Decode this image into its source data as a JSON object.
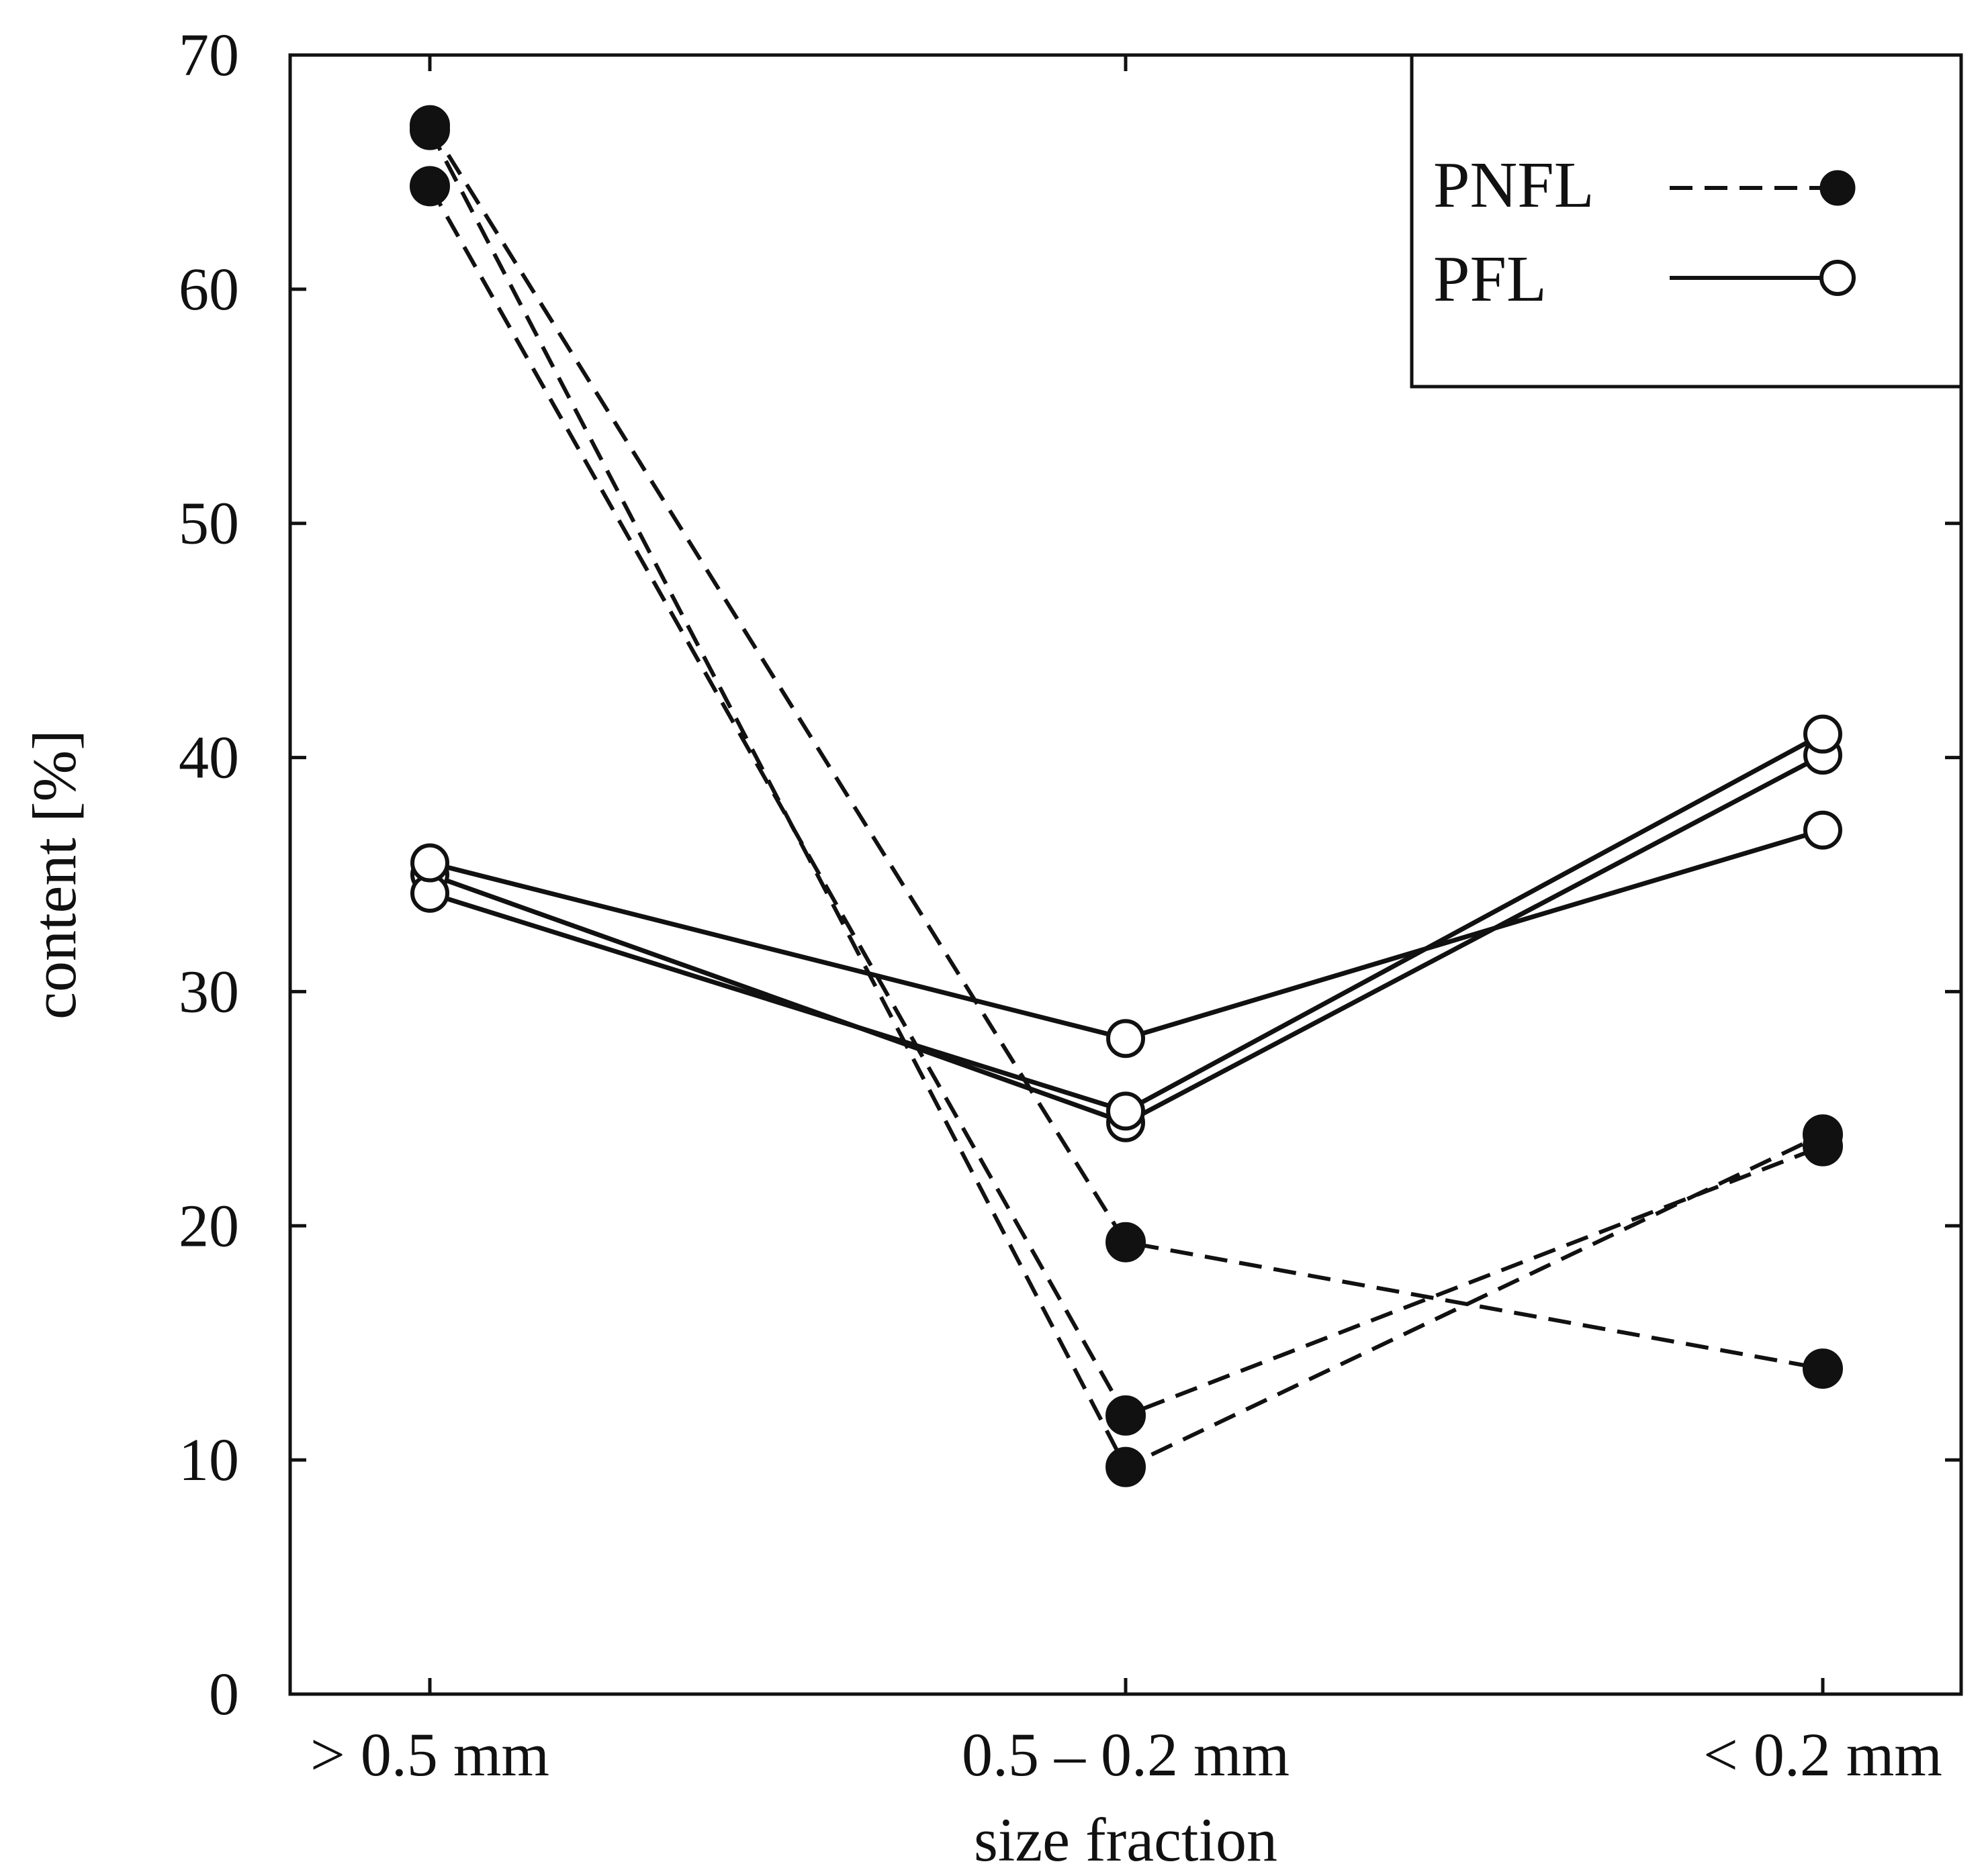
{
  "chart_data": {
    "type": "line",
    "title": "",
    "xlabel": "size fraction",
    "ylabel": "content [%]",
    "categories": [
      "> 0.5 mm",
      "0.5 – 0.2 mm",
      "< 0.2 mm"
    ],
    "ylim": [
      0,
      70
    ],
    "yticks": [
      "0",
      "10",
      "20",
      "30",
      "40",
      "50",
      "60",
      "70"
    ],
    "grid": false,
    "legend": {
      "position": "top-right",
      "entries": [
        {
          "label": "PNFL",
          "style": "dashed",
          "marker": "filled-circle"
        },
        {
          "label": "PFL",
          "style": "solid",
          "marker": "open-circle"
        }
      ]
    },
    "series": [
      {
        "name": "PNFL",
        "group": "PNFL",
        "values": [
          66.8,
          9.7,
          23.9
        ]
      },
      {
        "name": "PNFL",
        "group": "PNFL",
        "values": [
          64.4,
          11.9,
          23.4
        ]
      },
      {
        "name": "PNFL",
        "group": "PNFL",
        "values": [
          67.0,
          19.3,
          13.9
        ]
      },
      {
        "name": "PFL",
        "group": "PFL",
        "values": [
          35.0,
          24.4,
          40.1
        ]
      },
      {
        "name": "PFL",
        "group": "PFL",
        "values": [
          34.2,
          24.9,
          41.0
        ]
      },
      {
        "name": "PFL",
        "group": "PFL",
        "values": [
          35.5,
          28.0,
          36.9
        ]
      }
    ]
  }
}
